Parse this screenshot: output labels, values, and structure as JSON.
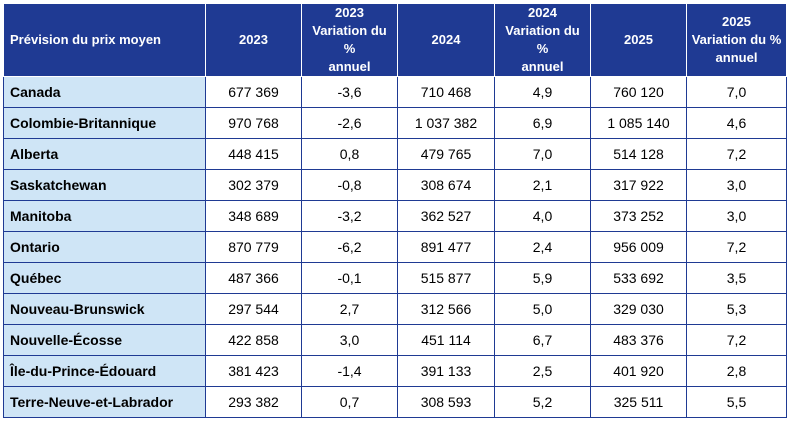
{
  "table": {
    "headers": [
      "Prévision du prix moyen",
      "2023",
      "2023\nVariation du %\nannuel",
      "2024",
      "2024\nVariation du %\nannuel",
      "2025",
      "2025\nVariation du %\nannuel"
    ],
    "rows": [
      [
        "Canada",
        "677 369",
        "-3,6",
        "710 468",
        "4,9",
        "760 120",
        "7,0"
      ],
      [
        "Colombie-Britannique",
        "970 768",
        "-2,6",
        "1 037 382",
        "6,9",
        "1 085 140",
        "4,6"
      ],
      [
        "Alberta",
        "448 415",
        "0,8",
        "479 765",
        "7,0",
        "514 128",
        "7,2"
      ],
      [
        "Saskatchewan",
        "302 379",
        "-0,8",
        "308 674",
        "2,1",
        "317 922",
        "3,0"
      ],
      [
        "Manitoba",
        "348 689",
        "-3,2",
        "362 527",
        "4,0",
        "373 252",
        "3,0"
      ],
      [
        "Ontario",
        "870 779",
        "-6,2",
        "891 477",
        "2,4",
        "956 009",
        "7,2"
      ],
      [
        "Québec",
        "487 366",
        "-0,1",
        "515 877",
        "5,9",
        "533 692",
        "3,5"
      ],
      [
        "Nouveau-Brunswick",
        "297 544",
        "2,7",
        "312 566",
        "5,0",
        "329 030",
        "5,3"
      ],
      [
        "Nouvelle-Écosse",
        "422 858",
        "3,0",
        "451 114",
        "6,7",
        "483 376",
        "7,2"
      ],
      [
        "Île-du-Prince-Édouard",
        "381 423",
        "-1,4",
        "391 133",
        "2,5",
        "401 920",
        "2,8"
      ],
      [
        "Terre-Neuve-et-Labrador",
        "293 382",
        "0,7",
        "308 593",
        "5,2",
        "325 511",
        "5,5"
      ]
    ],
    "colors": {
      "header_bg": "#1f3a93",
      "header_text": "#ffffff",
      "province_bg": "#cfe5f6",
      "border": "#1f3a93"
    }
  }
}
